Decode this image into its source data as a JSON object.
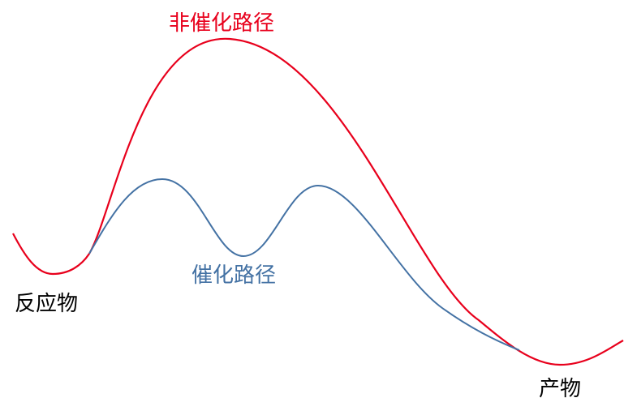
{
  "labels": {
    "uncatalyzed_path": "非催化路径",
    "catalyzed_path": "催化路径",
    "reactants": "反应物",
    "products": "产物"
  },
  "colors": {
    "uncatalyzed": "#e8001c",
    "catalyzed": "#4472a4",
    "text": "#000000"
  }
}
